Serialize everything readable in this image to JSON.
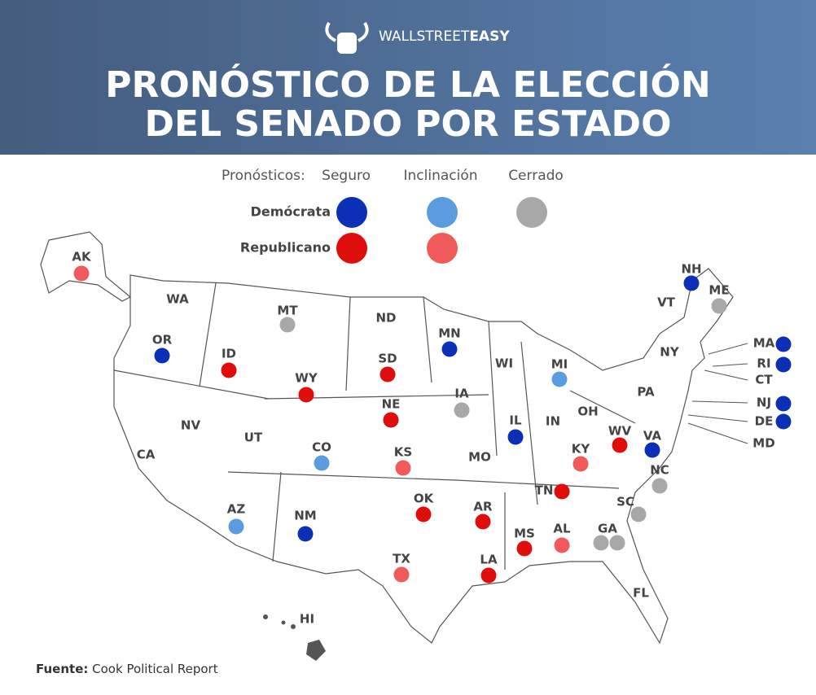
{
  "header": {
    "logo_light": "WALLSTREET",
    "logo_bold": "EASY",
    "title_lines": [
      "PRONÓSTICO DE LA ELECCIÓN",
      "DEL SENADO POR ESTADO"
    ]
  },
  "legend": {
    "label": "Pronósticos:",
    "columns": [
      "Seguro",
      "Inclinación",
      "Cerrado"
    ],
    "rows": [
      {
        "name": "Demócrata",
        "colors": [
          "#0b2fb5",
          "#5b9be0",
          "#a8a8a8"
        ]
      },
      {
        "name": "Republicano",
        "colors": [
          "#e00d0d",
          "#f05a5a"
        ]
      }
    ]
  },
  "states": [
    {
      "label": "AK",
      "dots": [
        "#f05a5a"
      ]
    },
    {
      "label": "WA"
    },
    {
      "label": "OR",
      "dots": [
        "#0b2fb5"
      ]
    },
    {
      "label": "ID",
      "dots": [
        "#e00d0d"
      ]
    },
    {
      "label": "MT",
      "dots": [
        "#a8a8a8"
      ]
    },
    {
      "label": "WY",
      "dots": [
        "#e00d0d"
      ]
    },
    {
      "label": "ND"
    },
    {
      "label": "SD",
      "dots": [
        "#e00d0d"
      ]
    },
    {
      "label": "NE",
      "dots": [
        "#e00d0d"
      ]
    },
    {
      "label": "MN",
      "dots": [
        "#0b2fb5"
      ]
    },
    {
      "label": "WI"
    },
    {
      "label": "MI",
      "dots": [
        "#5b9be0"
      ]
    },
    {
      "label": "IA",
      "dots": [
        "#a8a8a8"
      ]
    },
    {
      "label": "IL",
      "dots": [
        "#0b2fb5"
      ]
    },
    {
      "label": "IN"
    },
    {
      "label": "OH"
    },
    {
      "label": "PA"
    },
    {
      "label": "NY"
    },
    {
      "label": "VT"
    },
    {
      "label": "NH",
      "dots": [
        "#0b2fb5"
      ]
    },
    {
      "label": "ME",
      "dots": [
        "#a8a8a8"
      ]
    },
    {
      "label": "MA",
      "dots": [
        "#0b2fb5"
      ]
    },
    {
      "label": "RI",
      "dots": [
        "#0b2fb5"
      ]
    },
    {
      "label": "CT"
    },
    {
      "label": "NJ",
      "dots": [
        "#0b2fb5"
      ]
    },
    {
      "label": "DE",
      "dots": [
        "#0b2fb5"
      ]
    },
    {
      "label": "MD"
    },
    {
      "label": "WV",
      "dots": [
        "#e00d0d"
      ]
    },
    {
      "label": "VA",
      "dots": [
        "#0b2fb5"
      ]
    },
    {
      "label": "KY",
      "dots": [
        "#f05a5a"
      ]
    },
    {
      "label": "NC",
      "dots": [
        "#a8a8a8"
      ]
    },
    {
      "label": "SC",
      "dots": [
        "#a8a8a8"
      ]
    },
    {
      "label": "TN",
      "dots": [
        "#e00d0d"
      ]
    },
    {
      "label": "GA",
      "dots": [
        "#a8a8a8",
        "#a8a8a8"
      ]
    },
    {
      "label": "AL",
      "dots": [
        "#f05a5a"
      ]
    },
    {
      "label": "MS",
      "dots": [
        "#e00d0d"
      ]
    },
    {
      "label": "LA",
      "dots": [
        "#e00d0d"
      ]
    },
    {
      "label": "AR",
      "dots": [
        "#e00d0d"
      ]
    },
    {
      "label": "MO"
    },
    {
      "label": "OK",
      "dots": [
        "#e00d0d"
      ]
    },
    {
      "label": "KS",
      "dots": [
        "#f05a5a"
      ]
    },
    {
      "label": "TX",
      "dots": [
        "#f05a5a"
      ]
    },
    {
      "label": "NM",
      "dots": [
        "#0b2fb5"
      ]
    },
    {
      "label": "AZ",
      "dots": [
        "#5b9be0"
      ]
    },
    {
      "label": "CO",
      "dots": [
        "#5b9be0"
      ]
    },
    {
      "label": "UT"
    },
    {
      "label": "NV"
    },
    {
      "label": "CA"
    },
    {
      "label": "FL"
    },
    {
      "label": "HI"
    }
  ],
  "source": {
    "label": "Fuente:",
    "text": "Cook Political Report"
  }
}
